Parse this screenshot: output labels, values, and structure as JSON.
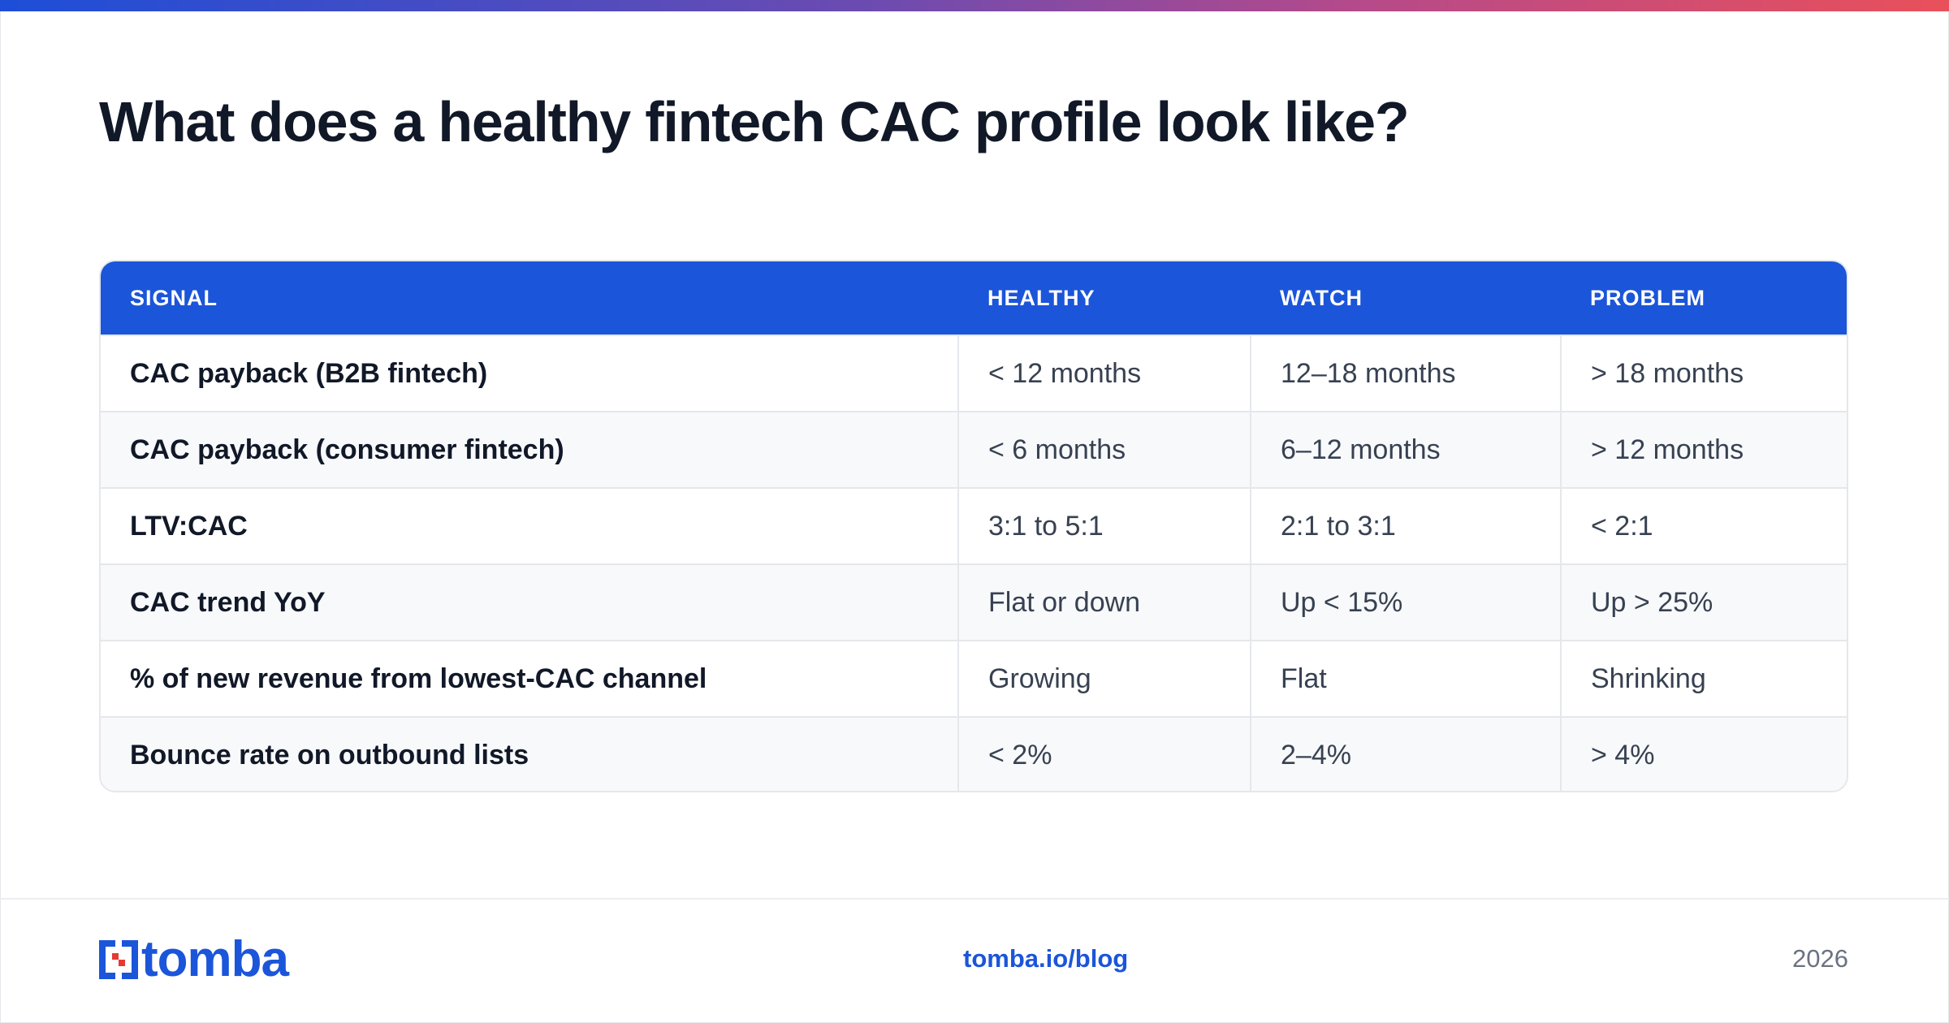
{
  "page": {
    "title": "What does a healthy fintech CAC profile look like?"
  },
  "table": {
    "headers": [
      "SIGNAL",
      "HEALTHY",
      "WATCH",
      "PROBLEM"
    ],
    "rows": [
      [
        "CAC payback (B2B fintech)",
        "< 12 months",
        "12–18 months",
        "> 18 months"
      ],
      [
        "CAC payback (consumer fintech)",
        "< 6 months",
        "6–12 months",
        "> 12 months"
      ],
      [
        "LTV:CAC",
        "3:1 to 5:1",
        "2:1 to 3:1",
        "< 2:1"
      ],
      [
        "CAC trend YoY",
        "Flat or down",
        "Up < 15%",
        "Up > 25%"
      ],
      [
        "% of new revenue from lowest-CAC channel",
        "Growing",
        "Flat",
        "Shrinking"
      ],
      [
        "Bounce rate on outbound lists",
        "< 2%",
        "2–4%",
        "> 4%"
      ]
    ]
  },
  "footer": {
    "logo_text": "tomba",
    "link": "tomba.io/blog",
    "year": "2026"
  },
  "colors": {
    "accent": "#1b55d9",
    "title": "#111827",
    "gradient": [
      "#1d4ed8",
      "#6d4bb0",
      "#b64a8a",
      "#e9505a"
    ]
  }
}
